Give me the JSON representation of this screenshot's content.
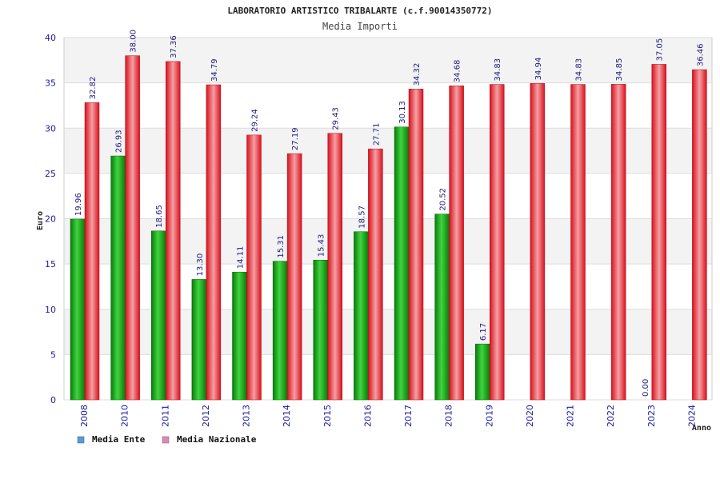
{
  "chart_data": {
    "type": "bar",
    "title": "LABORATORIO ARTISTICO TRIBALARTE (c.f.90014350772)",
    "subtitle": "Media Importi",
    "xlabel": "Anno",
    "ylabel": "Euro",
    "ylim": [
      0,
      40
    ],
    "yticks": [
      0,
      5,
      10,
      15,
      20,
      25,
      30,
      35,
      40
    ],
    "grid": true,
    "legend_position": "bottom-left",
    "categories": [
      "2008",
      "2010",
      "2011",
      "2012",
      "2013",
      "2014",
      "2015",
      "2016",
      "2017",
      "2018",
      "2019",
      "2020",
      "2021",
      "2022",
      "2023",
      "2024"
    ],
    "series": [
      {
        "name": "Media Ente",
        "color": "#1fa01f",
        "values": [
          19.96,
          26.93,
          18.65,
          13.3,
          14.11,
          15.31,
          15.43,
          18.57,
          30.13,
          20.52,
          6.17,
          null,
          null,
          null,
          0.0,
          null
        ],
        "labels": [
          "19.96",
          "26.93",
          "18.65",
          "13.30",
          "14.11",
          "15.31",
          "15.43",
          "18.57",
          "30.13",
          "20.52",
          "6.17",
          "",
          "",
          "",
          "0.00",
          ""
        ]
      },
      {
        "name": "Media Nazionale",
        "color": "#e8202a",
        "values": [
          32.82,
          38.0,
          37.36,
          34.79,
          29.24,
          27.19,
          29.43,
          27.71,
          34.32,
          34.68,
          34.83,
          34.94,
          34.83,
          34.85,
          37.05,
          36.46
        ],
        "labels": [
          "32.82",
          "38.00",
          "37.36",
          "34.79",
          "29.24",
          "27.19",
          "29.43",
          "27.71",
          "34.32",
          "34.68",
          "34.83",
          "34.94",
          "34.83",
          "34.85",
          "37.05",
          "36.46"
        ]
      }
    ],
    "legend_colors": [
      "#5b9bd5",
      "#d98cb3"
    ]
  }
}
